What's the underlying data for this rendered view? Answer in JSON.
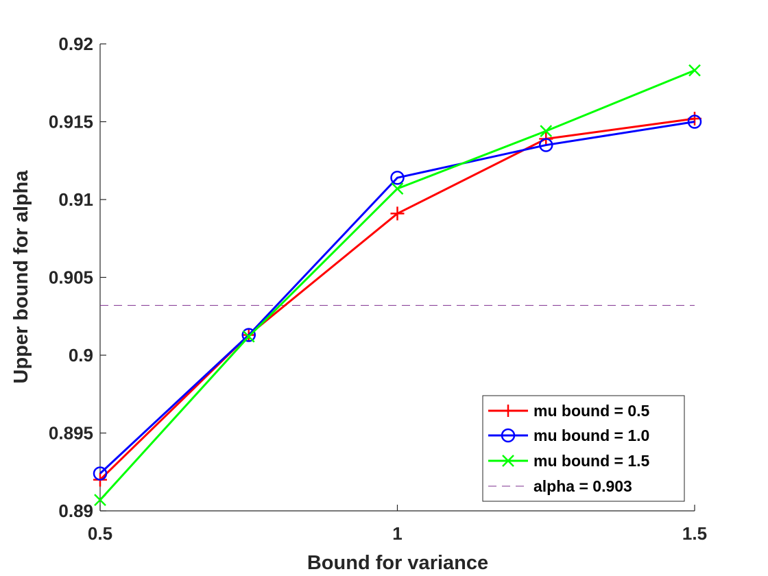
{
  "chart_data": {
    "type": "line",
    "xlabel": "Bound for variance",
    "ylabel": "Upper bound for alpha",
    "xlim": [
      0.5,
      1.5
    ],
    "ylim": [
      0.89,
      0.92
    ],
    "xticks": [
      0.5,
      1,
      1.5
    ],
    "xtick_labels": [
      "0.5",
      "1",
      "1.5"
    ],
    "yticks": [
      0.89,
      0.895,
      0.9,
      0.905,
      0.91,
      0.915,
      0.92
    ],
    "ytick_labels": [
      "0.89",
      "0.895",
      "0.9",
      "0.905",
      "0.91",
      "0.915",
      "0.92"
    ],
    "grid": false,
    "legend_position": "bottom-right",
    "x": [
      0.5,
      0.75,
      1.0,
      1.25,
      1.5
    ],
    "series": [
      {
        "name": "mu bound = 0.5",
        "color": "#ff0000",
        "marker": "plus",
        "values": [
          0.892,
          0.9013,
          0.9091,
          0.9139,
          0.9152
        ]
      },
      {
        "name": "mu bound = 1.0",
        "color": "#0000ff",
        "marker": "circle",
        "values": [
          0.8924,
          0.9013,
          0.9114,
          0.9135,
          0.915
        ]
      },
      {
        "name": "mu bound = 1.5",
        "color": "#00ff00",
        "marker": "x",
        "values": [
          0.8907,
          0.9012,
          0.9107,
          0.9144,
          0.9183
        ]
      }
    ],
    "reference_line": {
      "name": "alpha = 0.903",
      "value": 0.9032,
      "color": "#7e2f8e",
      "style": "dashed"
    }
  }
}
